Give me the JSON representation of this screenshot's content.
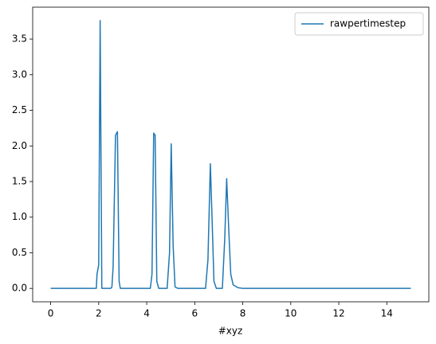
{
  "chart_data": {
    "type": "line",
    "x_label": "#xyz",
    "x": [
      0,
      1.9,
      1.93,
      2.0,
      2.06,
      2.13,
      2.5,
      2.55,
      2.6,
      2.7,
      2.78,
      2.85,
      2.9,
      4.15,
      4.22,
      4.29,
      4.35,
      4.42,
      4.5,
      4.85,
      4.95,
      5.02,
      5.1,
      5.18,
      5.3,
      6.45,
      6.55,
      6.65,
      6.72,
      6.8,
      6.9,
      7.15,
      7.25,
      7.33,
      7.42,
      7.5,
      7.6,
      7.8,
      8.0,
      15
    ],
    "series": [
      {
        "name": "rawpertimestep",
        "color": "#1f77b4",
        "values": [
          0,
          0,
          0.2,
          0.33,
          3.76,
          0,
          0,
          0.02,
          0.3,
          2.15,
          2.2,
          0.1,
          0,
          0,
          0.2,
          2.18,
          2.15,
          0.1,
          0,
          0,
          0.5,
          2.03,
          0.6,
          0.02,
          0,
          0,
          0.4,
          1.75,
          1.0,
          0.1,
          0,
          0,
          0.7,
          1.54,
          0.8,
          0.2,
          0.05,
          0.01,
          0,
          0
        ]
      }
    ],
    "xlim": [
      -0.75,
      15.75
    ],
    "xticks": [
      0,
      2,
      4,
      6,
      8,
      10,
      12,
      14
    ],
    "ylim": [
      -0.188,
      3.948
    ],
    "yticks": [
      {
        "value": 0,
        "label": "0.0"
      },
      0.5,
      {
        "value": 1,
        "label": "1.0"
      },
      1.5,
      {
        "value": 2,
        "label": "2.0"
      },
      2.5,
      {
        "value": 3,
        "label": "3.0"
      },
      3.5
    ],
    "legend": "upper right"
  }
}
